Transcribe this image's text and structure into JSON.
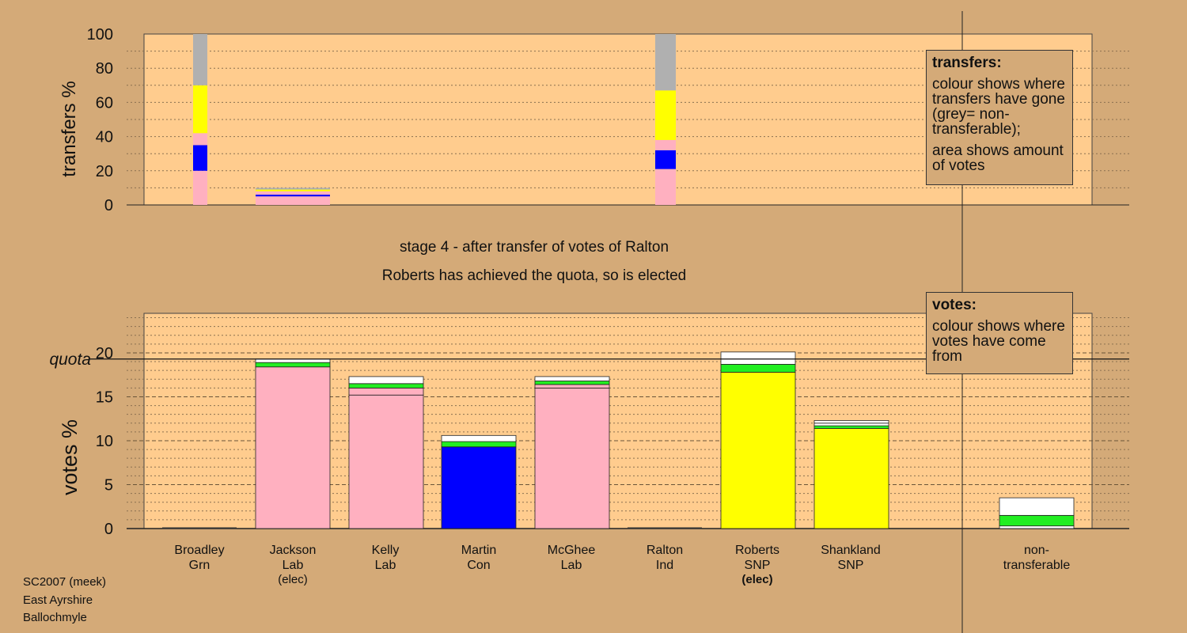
{
  "chart_data": [
    {
      "type": "bar",
      "stacked": true,
      "ylabel": "transfers %",
      "ylim": [
        0,
        100
      ],
      "yticks": [
        0,
        20,
        40,
        60,
        80,
        100
      ],
      "bars": [
        {
          "candidate": "Broadley",
          "segments": [
            {
              "from": 0,
              "to": 20,
              "color": "#ffb0c0"
            },
            {
              "from": 20,
              "to": 35,
              "color": "#0000ff"
            },
            {
              "from": 35,
              "to": 42,
              "color": "#ffb0c0"
            },
            {
              "from": 42,
              "to": 70,
              "color": "#ffff00"
            },
            {
              "from": 70,
              "to": 100,
              "color": "#b0b0b0"
            }
          ]
        },
        {
          "candidate": "Jackson",
          "segments": [
            {
              "from": 0,
              "to": 5,
              "color": "#ffb0c0"
            },
            {
              "from": 5,
              "to": 6,
              "color": "#0000ff"
            },
            {
              "from": 6,
              "to": 8,
              "color": "#ffb0c0"
            },
            {
              "from": 8,
              "to": 9,
              "color": "#ffff00"
            },
            {
              "from": 9,
              "to": 10,
              "color": "#b0b0b0"
            }
          ]
        },
        {
          "candidate": "Ralton",
          "segments": [
            {
              "from": 0,
              "to": 21,
              "color": "#ffb0c0"
            },
            {
              "from": 21,
              "to": 32,
              "color": "#0000ff"
            },
            {
              "from": 32,
              "to": 38,
              "color": "#ffb0c0"
            },
            {
              "from": 38,
              "to": 67,
              "color": "#ffff00"
            },
            {
              "from": 67,
              "to": 100,
              "color": "#b0b0b0"
            }
          ]
        }
      ]
    },
    {
      "type": "bar",
      "stacked": true,
      "ylabel": "votes %",
      "ylim": [
        0,
        24.5
      ],
      "yticks": [
        0,
        5,
        10,
        15,
        20
      ],
      "quota": 19.3,
      "quota_label": "quota",
      "bars": [
        {
          "candidate": "Broadley",
          "party": "Grn",
          "status": "",
          "segments": []
        },
        {
          "candidate": "Jackson",
          "party": "Lab",
          "status": "(elec)",
          "segments": [
            {
              "value": 18.4,
              "color": "#ffb0c0"
            },
            {
              "value": 0.5,
              "color": "#22ee22"
            },
            {
              "value": 0.4,
              "color": "#ffffff"
            }
          ]
        },
        {
          "candidate": "Kelly",
          "party": "Lab",
          "status": "",
          "segments": [
            {
              "value": 15.2,
              "color": "#ffb0c0"
            },
            {
              "value": 0.8,
              "color": "#ffb0c0"
            },
            {
              "value": 0.5,
              "color": "#22ee22"
            },
            {
              "value": 0.8,
              "color": "#ffffff"
            }
          ]
        },
        {
          "candidate": "Martin",
          "party": "Con",
          "status": "",
          "segments": [
            {
              "value": 9.3,
              "color": "#0000ff"
            },
            {
              "value": 0.6,
              "color": "#22ee22"
            },
            {
              "value": 0.7,
              "color": "#ffffff"
            }
          ]
        },
        {
          "candidate": "McGhee",
          "party": "Lab",
          "status": "",
          "segments": [
            {
              "value": 16.0,
              "color": "#ffb0c0"
            },
            {
              "value": 0.4,
              "color": "#ffb0c0"
            },
            {
              "value": 0.4,
              "color": "#22ee22"
            },
            {
              "value": 0.5,
              "color": "#ffffff"
            }
          ]
        },
        {
          "candidate": "Ralton",
          "party": "Ind",
          "status": "",
          "segments": []
        },
        {
          "candidate": "Roberts",
          "party": "SNP",
          "status": "(elec)",
          "status_bold": true,
          "segments": [
            {
              "value": 17.8,
              "color": "#ffff00"
            },
            {
              "value": 0.9,
              "color": "#22ee22"
            },
            {
              "value": 1.4,
              "color": "#ffffff"
            }
          ]
        },
        {
          "candidate": "Shankland",
          "party": "SNP",
          "status": "",
          "segments": [
            {
              "value": 11.4,
              "color": "#ffff00"
            },
            {
              "value": 0.3,
              "color": "#22ee22"
            },
            {
              "value": 0.3,
              "color": "#ffffff"
            },
            {
              "value": 0.3,
              "color": "#ffffff"
            }
          ]
        },
        {
          "candidate": "non-",
          "party": "transferable",
          "status": "",
          "segments": [
            {
              "value": 0.3,
              "color": "#ffffff"
            },
            {
              "value": 1.2,
              "color": "#22ee22"
            },
            {
              "value": 2.0,
              "color": "#ffffff"
            }
          ]
        }
      ]
    }
  ],
  "captions": {
    "stage": "stage 4 - after transfer of votes of Ralton",
    "result": "Roberts has achieved the quota, so is elected"
  },
  "legend_transfers": {
    "heading": "transfers:",
    "line1": "colour shows where transfers have gone (grey= non-transferable);",
    "line2": "area shows amount of votes"
  },
  "legend_votes": {
    "heading": "votes:",
    "line1": "colour shows where votes have come from"
  },
  "meta": {
    "line1": "SC2007 (meek)",
    "line2": "East Ayrshire",
    "line3": "Ballochmyle"
  },
  "colors": {
    "background": "#d4aa78",
    "plot_area": "#ffcc8e",
    "pink": "#ffb0c0",
    "blue": "#0000ff",
    "yellow": "#ffff00",
    "green": "#22ee22",
    "grey": "#b0b0b0",
    "white": "#ffffff"
  }
}
